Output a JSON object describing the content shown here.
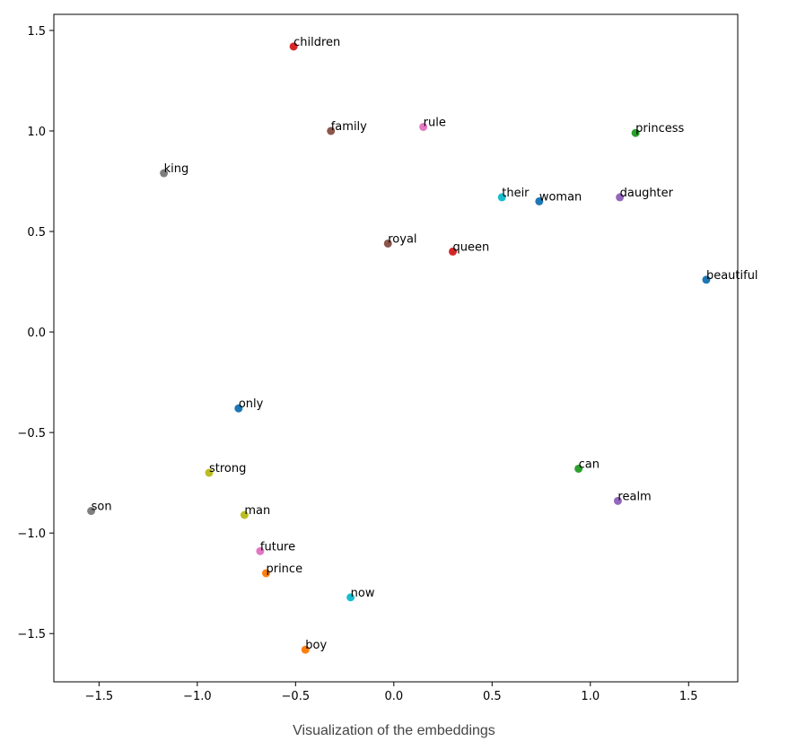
{
  "chart_data": {
    "type": "scatter",
    "title": "",
    "xlabel": "",
    "ylabel": "",
    "xlim": [
      -1.73,
      1.75
    ],
    "ylim": [
      -1.74,
      1.58
    ],
    "xticks": [
      -1.5,
      -1.0,
      -0.5,
      0.0,
      0.5,
      1.0,
      1.5
    ],
    "yticks": [
      -1.5,
      -1.0,
      -0.5,
      0.0,
      0.5,
      1.0,
      1.5
    ],
    "xtick_labels": [
      "−1.5",
      "−1.0",
      "−0.5",
      "0.0",
      "0.5",
      "1.0",
      "1.5"
    ],
    "ytick_labels": [
      "−1.5",
      "−1.0",
      "−0.5",
      "0.0",
      "0.5",
      "1.0",
      "1.5"
    ],
    "grid": false,
    "points": [
      {
        "label": "children",
        "x": -0.51,
        "y": 1.42,
        "color": "#d62728"
      },
      {
        "label": "family",
        "x": -0.32,
        "y": 1.0,
        "color": "#8c564b"
      },
      {
        "label": "rule",
        "x": 0.15,
        "y": 1.02,
        "color": "#e377c2"
      },
      {
        "label": "princess",
        "x": 1.23,
        "y": 0.99,
        "color": "#2ca02c"
      },
      {
        "label": "king",
        "x": -1.17,
        "y": 0.79,
        "color": "#7f7f7f"
      },
      {
        "label": "their",
        "x": 0.55,
        "y": 0.67,
        "color": "#17becf"
      },
      {
        "label": "woman",
        "x": 0.74,
        "y": 0.65,
        "color": "#1f77b4"
      },
      {
        "label": "daughter",
        "x": 1.15,
        "y": 0.67,
        "color": "#9467bd"
      },
      {
        "label": "royal",
        "x": -0.03,
        "y": 0.44,
        "color": "#8c564b"
      },
      {
        "label": "queen",
        "x": 0.3,
        "y": 0.4,
        "color": "#d62728"
      },
      {
        "label": "beautiful",
        "x": 1.59,
        "y": 0.26,
        "color": "#1f77b4"
      },
      {
        "label": "only",
        "x": -0.79,
        "y": -0.38,
        "color": "#1f77b4"
      },
      {
        "label": "strong",
        "x": -0.94,
        "y": -0.7,
        "color": "#bcbd22"
      },
      {
        "label": "can",
        "x": 0.94,
        "y": -0.68,
        "color": "#2ca02c"
      },
      {
        "label": "realm",
        "x": 1.14,
        "y": -0.84,
        "color": "#9467bd"
      },
      {
        "label": "son",
        "x": -1.54,
        "y": -0.89,
        "color": "#7f7f7f"
      },
      {
        "label": "man",
        "x": -0.76,
        "y": -0.91,
        "color": "#bcbd22"
      },
      {
        "label": "future",
        "x": -0.68,
        "y": -1.09,
        "color": "#e377c2"
      },
      {
        "label": "prince",
        "x": -0.65,
        "y": -1.2,
        "color": "#ff7f0e"
      },
      {
        "label": "now",
        "x": -0.22,
        "y": -1.32,
        "color": "#17becf"
      },
      {
        "label": "boy",
        "x": -0.45,
        "y": -1.58,
        "color": "#ff7f0e"
      }
    ]
  },
  "caption": "Visualization of the embeddings"
}
